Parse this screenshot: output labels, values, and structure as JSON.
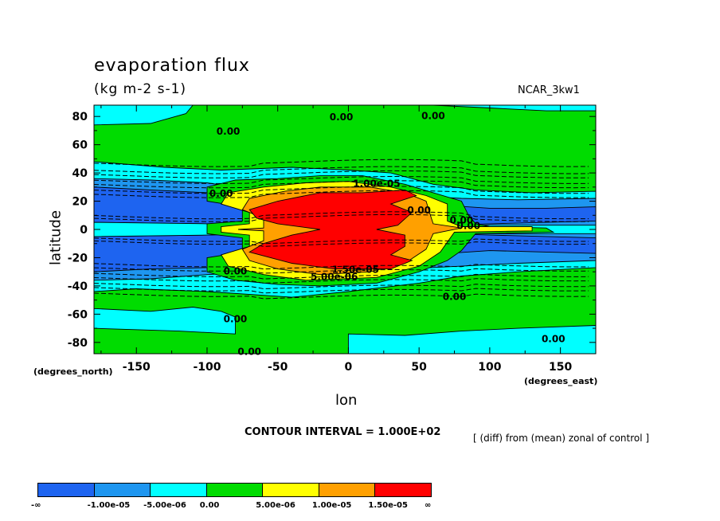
{
  "header": {
    "title": "evaporation flux",
    "units": "(kg m-2 s-1)",
    "model": "NCAR_3kw1"
  },
  "footer": {
    "contour_interval": "CONTOUR INTERVAL = 1.000E+02",
    "description": "[ (diff) from (mean) zonal of control ]"
  },
  "chart_data": {
    "type": "heatmap",
    "title": "evaporation flux",
    "xlabel": "lon",
    "ylabel": "latitude",
    "xunits": "(degrees_east)",
    "yunits": "(degrees_north)",
    "xlim": [
      -180,
      175
    ],
    "ylim": [
      -88,
      88
    ],
    "xticks": [
      -150,
      -100,
      -50,
      0,
      50,
      100,
      150
    ],
    "yticks": [
      80,
      60,
      40,
      20,
      0,
      -20,
      -40,
      -60,
      -80
    ],
    "contour_labels": [
      "0.00",
      "0.00",
      "0.00",
      "0.00",
      "1.00e-05",
      "0.00",
      "0.00",
      "1.50e-05",
      "5.00e-06",
      "0.00",
      "0.00",
      "0.00",
      "0.00",
      "0.00",
      "0.00"
    ],
    "colorbar": {
      "colors": [
        "#1e64f0",
        "#1e96f0",
        "#00ffff",
        "#00dc00",
        "#ffff00",
        "#ffa000",
        "#ff0000"
      ],
      "labels": [
        "-∞",
        "-1.00e-05",
        "-5.00e-06",
        "0.00",
        "5.00e-06",
        "1.00e-05",
        "1.50e-05",
        "∞"
      ]
    }
  }
}
